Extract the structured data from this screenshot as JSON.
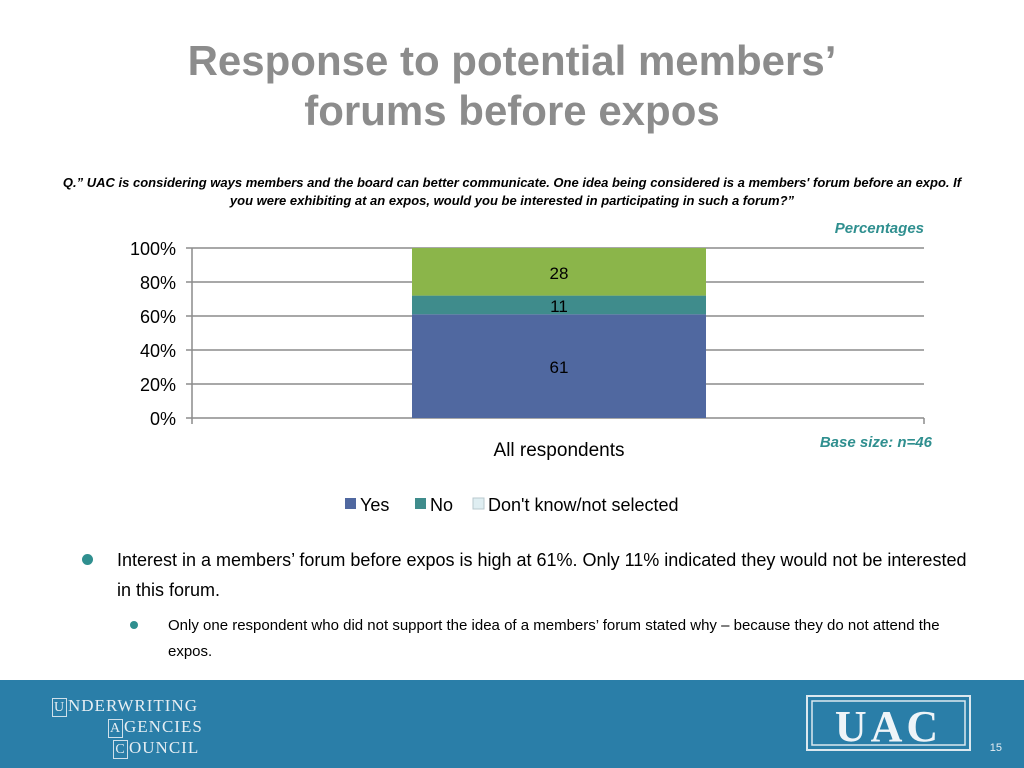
{
  "slide": {
    "title_line1": "Response to potential members’",
    "title_line2": "forums before expos",
    "question": "Q.” UAC is considering ways members and the board can better communicate. One idea being considered is a members' forum before an expo. If you were exhibiting at an expos, would you be interested in participating in such a forum?”",
    "unit_note": "Percentages",
    "base_note": "Base size: n=46",
    "page_number": "15"
  },
  "chart_data": {
    "type": "bar",
    "stacked": true,
    "categories": [
      "All respondents"
    ],
    "series": [
      {
        "name": "Yes",
        "values": [
          61
        ],
        "color": "#5068a0"
      },
      {
        "name": "No",
        "values": [
          11
        ],
        "color": "#3f8c8c"
      },
      {
        "name": "Don't know/not selected",
        "values": [
          28
        ],
        "color": "#8bb54a"
      }
    ],
    "legend_series": [
      {
        "name": "Yes",
        "color": "#5068a0"
      },
      {
        "name": "No",
        "color": "#3f8c8c"
      },
      {
        "name": "Don't know/not selected",
        "color": "#dfeef2"
      }
    ],
    "y_ticks": [
      "0%",
      "20%",
      "40%",
      "60%",
      "80%",
      "100%"
    ],
    "ylim": [
      0,
      100
    ],
    "grid": true,
    "legend_position": "bottom"
  },
  "bullets": {
    "main": "Interest in a members’ forum before expos is high at 61%.  Only 11% indicated they would not be interested in this forum.",
    "sub": "Only one respondent who did not support the idea of a members’ forum stated why – because they do not attend the expos."
  },
  "footer": {
    "org_row1_initial": "U",
    "org_row1_rest": "NDERWRITING",
    "org_row2_initial": "A",
    "org_row2_rest": "GENCIES",
    "org_row3_initial": "C",
    "org_row3_rest": "OUNCIL",
    "logo_text": "UAC",
    "brand_color": "#2a7ea8"
  }
}
